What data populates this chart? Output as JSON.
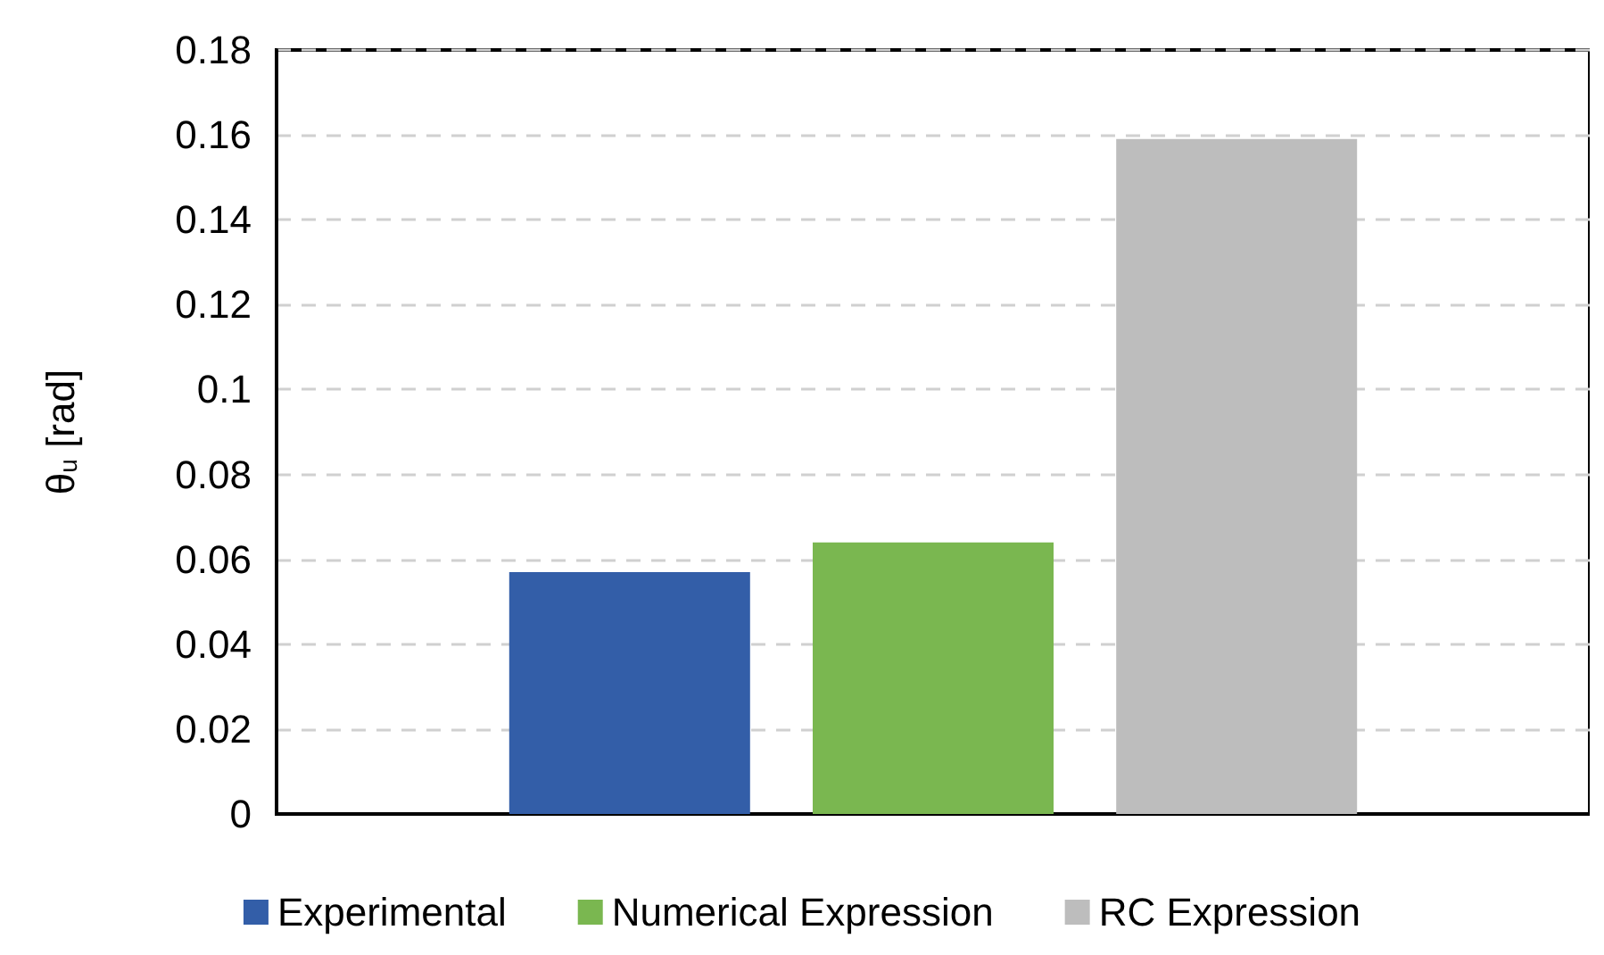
{
  "chart_data": {
    "type": "bar",
    "ylabel": "θ$_{u}$ [rad]",
    "categories": [
      null
    ],
    "series": [
      {
        "name": "Experimental",
        "color": "#335ea8",
        "values": [
          0.057
        ]
      },
      {
        "name": "Numerical Expression",
        "color": "#7ab750",
        "values": [
          0.064
        ]
      },
      {
        "name": "RC Expression",
        "color": "#bdbdbd",
        "values": [
          0.159
        ]
      }
    ],
    "ylim": [
      0,
      0.18
    ],
    "yticks": [
      0,
      0.02,
      0.04,
      0.06,
      0.08,
      0.1,
      0.12,
      0.14,
      0.16,
      0.18
    ],
    "grid": "y",
    "legend": "bottom"
  }
}
